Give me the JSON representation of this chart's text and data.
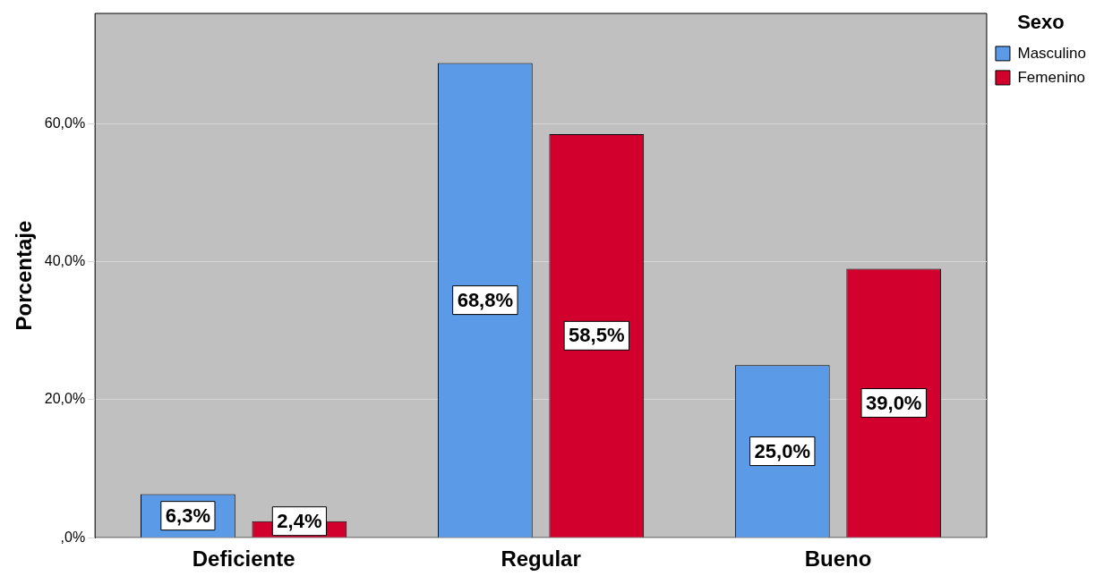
{
  "chart_data": {
    "type": "bar",
    "ylabel": "Porcentaje",
    "legend_title": "Sexo",
    "legend": "top right",
    "grid": "y",
    "categories": [
      "Deficiente",
      "Regular",
      "Bueno"
    ],
    "series": [
      {
        "name": "Masculino",
        "color": "#5a9ae6",
        "values": [
          6.3,
          68.8,
          25.0
        ],
        "value_labels": [
          "6,3%",
          "68,8%",
          "25,0%"
        ]
      },
      {
        "name": "Femenino",
        "color": "#d2002d",
        "values": [
          2.4,
          58.5,
          39.0
        ],
        "value_labels": [
          "2,4%",
          "58,5%",
          "39,0%"
        ]
      }
    ],
    "ylim": [
      0,
      76
    ],
    "yticks": [
      {
        "value": 0,
        "label": ",0%"
      },
      {
        "value": 20,
        "label": "20,0%"
      },
      {
        "value": 40,
        "label": "40,0%"
      },
      {
        "value": 60,
        "label": "60,0%"
      }
    ]
  }
}
